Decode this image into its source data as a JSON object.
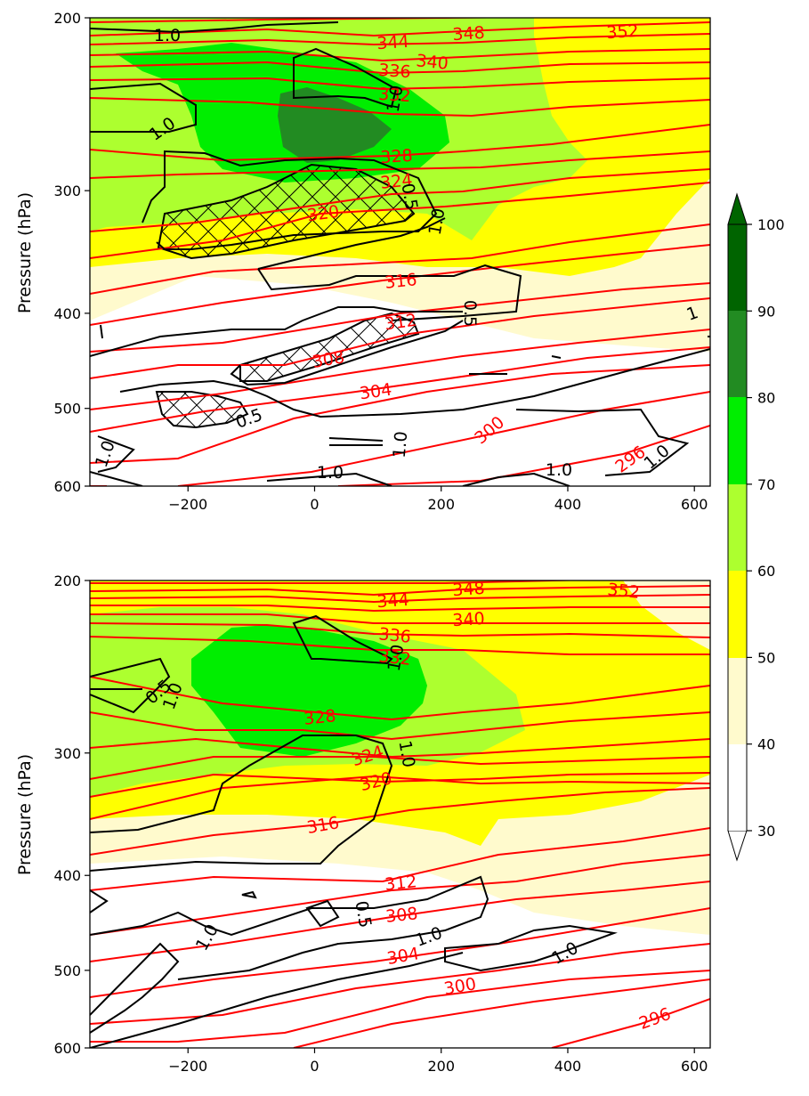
{
  "colors": {
    "shade_40_50": "#fffacd",
    "shade_50_60": "#ffff00",
    "shade_60_70": "#adff2f",
    "shade_70_80": "#00ee00",
    "shade_80_90": "#228b22",
    "shade_90_100": "#006400",
    "theta_lines": "#ff0000",
    "black_lines": "#000000"
  },
  "colorbar": {
    "ticks": [
      "30",
      "40",
      "50",
      "60",
      "70",
      "80",
      "90",
      "100"
    ],
    "extend": "both"
  },
  "chart_data": [
    {
      "type": "contour",
      "panel": "top",
      "ylabel": "Pressure (hPa)",
      "xlim": [
        -355,
        625
      ],
      "ylim": [
        600,
        200
      ],
      "y_scale": "log",
      "xticks": [
        "−200",
        "0",
        "200",
        "400",
        "600"
      ],
      "yticks": [
        "200",
        "300",
        "400",
        "500",
        "600"
      ],
      "theta_labels": [
        "352",
        "348",
        "344",
        "340",
        "336",
        "332",
        "328",
        "324",
        "320",
        "316",
        "312",
        "308",
        "304",
        "300",
        "296"
      ],
      "black_labels": [
        "1.0",
        "1.0",
        "1.0",
        "0.5",
        "1.0",
        "0.5",
        "0.5",
        "1.0",
        "1.0",
        "1.0",
        "1.0",
        "1.0",
        "1"
      ]
    },
    {
      "type": "contour",
      "panel": "bottom",
      "ylabel": "Pressure (hPa)",
      "xlim": [
        -355,
        625
      ],
      "ylim": [
        600,
        200
      ],
      "y_scale": "log",
      "xticks": [
        "−200",
        "0",
        "200",
        "400",
        "600"
      ],
      "yticks": [
        "200",
        "300",
        "400",
        "500",
        "600"
      ],
      "theta_labels": [
        "352",
        "348",
        "344",
        "340",
        "336",
        "332",
        "328",
        "324",
        "320",
        "316",
        "312",
        "308",
        "304",
        "300",
        "296"
      ],
      "black_labels": [
        "1.0",
        "0.5",
        "1.0",
        "1.0",
        "0.5",
        "1.0",
        "1.0",
        "1.0"
      ]
    }
  ]
}
